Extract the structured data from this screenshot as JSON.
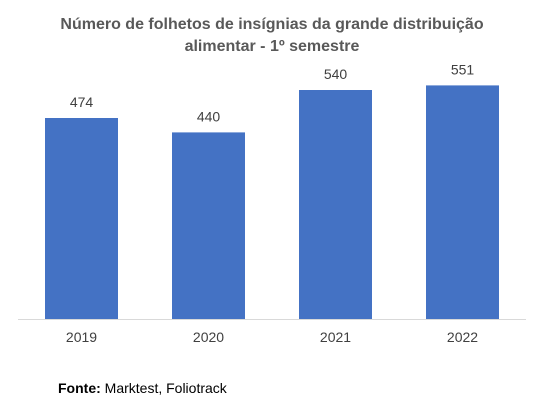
{
  "chart_data": {
    "type": "bar",
    "title": "Número de folhetos de insígnias da grande distribuição alimentar - 1º semestre",
    "title_lines": [
      "Número de folhetos de insígnias da grande distribuição",
      "alimentar - 1º semestre"
    ],
    "categories": [
      "2019",
      "2020",
      "2021",
      "2022"
    ],
    "values": [
      474,
      440,
      540,
      551
    ],
    "data_labels": [
      "474",
      "440",
      "540",
      "551"
    ],
    "xlabel": "",
    "ylabel": "",
    "ylim": [
      0,
      600
    ],
    "grid": false,
    "legend": "none",
    "bar_color": "#4472C4"
  },
  "source": {
    "label": "Fonte:",
    "text": "Marktest, Foliotrack"
  },
  "colors": {
    "title": "#595959",
    "axis_text": "#404040",
    "axis_line": "#D9D9D9"
  }
}
